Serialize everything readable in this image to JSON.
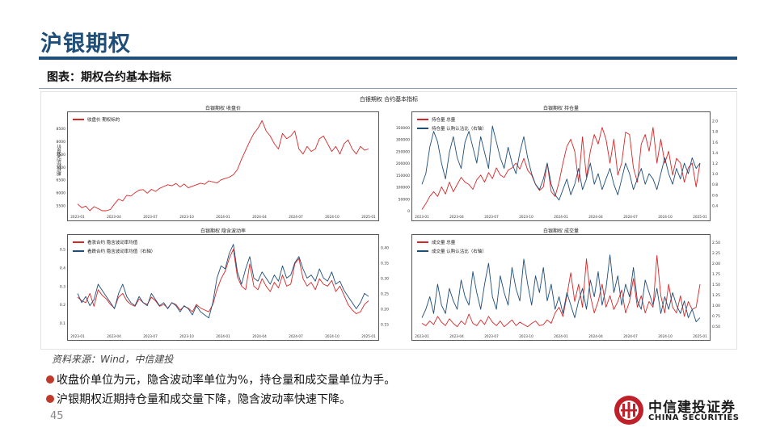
{
  "page": {
    "title": "沪银期权",
    "subtitle": "图表：期权合约基本指标",
    "source": "资料来源：Wind，中信建投",
    "bullets": [
      "收盘价单位为元，隐含波动率单位为%，持仓量和成交量单位为手。",
      "沪银期权近期持仓量和成交量下降，隐含波动率快速下降。"
    ],
    "page_number": "45",
    "logo_cn": "中信建投证券",
    "logo_en": "CHINA SECURITIES"
  },
  "colors": {
    "brand": "#1f4e79",
    "red": "#d62728",
    "blue": "#1f4e79",
    "bullet": "#c0392b"
  },
  "figure_title": "白银期权 合约基本指标",
  "x_ticks": [
    "2023-01",
    "2023-04",
    "2023-07",
    "2023-10",
    "2024-01",
    "2024-04",
    "2024-07",
    "2024-10",
    "2025-01"
  ],
  "chart_data": [
    {
      "type": "line",
      "title": "白银期权 收盘价",
      "ylabel": "期权标的收盘价",
      "legend": [
        "收盘价 期权标的"
      ],
      "ylim": [
        5300,
        9000
      ],
      "yticks": [
        "5500",
        "6000",
        "6500",
        "7000",
        "7500",
        "8000",
        "8500"
      ],
      "y2ticks": [],
      "x_range": [
        "2023-01",
        "2025-01"
      ],
      "series": [
        {
          "name": "收盘价 期权标的",
          "axis": "left",
          "color": "#d62728",
          "values": [
            5560,
            5420,
            5480,
            5250,
            5460,
            5380,
            5200,
            5150,
            5350,
            5560,
            5750,
            5680,
            5900,
            5870,
            6000,
            6100,
            6120,
            5980,
            6130,
            6050,
            6170,
            6240,
            6310,
            6270,
            6360,
            6220,
            6340,
            6190,
            6250,
            6310,
            6370,
            6330,
            6460,
            6420,
            6380,
            6500,
            6550,
            6600,
            6700,
            6900,
            7300,
            7650,
            8000,
            8300,
            8500,
            8800,
            8400,
            8200,
            7900,
            7700,
            8300,
            8100,
            8200,
            8400,
            7700,
            7500,
            7800,
            7600,
            7700,
            8100,
            8200,
            7900,
            7600,
            7800,
            7500,
            7900,
            8050,
            7700,
            7500,
            7800,
            7650,
            7700
          ]
        }
      ]
    },
    {
      "type": "line",
      "title": "白银期权 持仓量",
      "legend": [
        "持仓量 总量",
        "持仓量 认购认沽比（右轴）"
      ],
      "ylim": [
        0,
        400000
      ],
      "yticks": [
        "0",
        "50000",
        "100000",
        "150000",
        "200000",
        "250000",
        "300000",
        "350000"
      ],
      "y2ticks": [
        "0.4",
        "0.6",
        "0.8",
        "1.0",
        "1.2",
        "1.4",
        "1.6",
        "1.8",
        "2.0"
      ],
      "x_range": [
        "2023-01",
        "2025-01"
      ],
      "series": [
        {
          "name": "持仓量 总量",
          "axis": "left",
          "color": "#d62728",
          "values": [
            5000,
            30000,
            60000,
            80000,
            60000,
            100000,
            70000,
            120000,
            80000,
            110000,
            140000,
            120000,
            110000,
            90000,
            130000,
            150000,
            120000,
            160000,
            135000,
            180000,
            150000,
            140000,
            170000,
            180000,
            200000,
            175000,
            220000,
            170000,
            150000,
            110000,
            85000,
            100000,
            200000,
            80000,
            60000,
            120000,
            200000,
            270000,
            300000,
            250000,
            120000,
            310000,
            140000,
            250000,
            320000,
            280000,
            350000,
            300000,
            200000,
            300000,
            150000,
            200000,
            330000,
            320000,
            180000,
            120000,
            280000,
            320000,
            250000,
            350000,
            200000,
            300000,
            200000,
            250000,
            150000,
            220000,
            200000,
            120000,
            180000,
            200000,
            100000,
            200000
          ]
        },
        {
          "name": "持仓量 认购认沽比（右轴）",
          "axis": "right",
          "color": "#1f4e79",
          "y2lim": [
            0.3,
            2.1
          ],
          "values": [
            0.8,
            1.0,
            1.5,
            1.8,
            1.6,
            1.2,
            0.9,
            1.4,
            1.7,
            1.3,
            1.1,
            1.6,
            1.8,
            1.5,
            1.2,
            1.7,
            1.4,
            1.1,
            1.9,
            1.6,
            1.3,
            1.1,
            1.5,
            1.2,
            1.0,
            1.4,
            1.7,
            1.3,
            1.0,
            0.8,
            0.7,
            0.9,
            1.2,
            0.8,
            0.6,
            0.5,
            0.7,
            0.9,
            0.6,
            0.8,
            1.1,
            0.7,
            0.9,
            1.2,
            0.8,
            1.0,
            0.7,
            0.9,
            1.1,
            0.8,
            0.6,
            0.9,
            1.2,
            1.0,
            0.7,
            0.9,
            1.1,
            0.8,
            1.0,
            0.9,
            0.7,
            1.0,
            1.3,
            1.0,
            0.8,
            1.1,
            0.9,
            1.2,
            1.0,
            1.3,
            1.1,
            1.2
          ]
        }
      ]
    },
    {
      "type": "line",
      "title": "白银期权 隐含波动率",
      "legend": [
        "看涨合约 隐含波动率均值",
        "看跌合约 隐含波动率均值（右轴）"
      ],
      "ylim": [
        0.06,
        0.56
      ],
      "yticks": [
        "0.1",
        "0.2",
        "0.3",
        "0.4",
        "0.5"
      ],
      "y2ticks": [
        "0.15",
        "0.20",
        "0.25",
        "0.30",
        "0.35",
        "0.40"
      ],
      "x_range": [
        "2023-01",
        "2025-01"
      ],
      "series": [
        {
          "name": "看涨合约 隐含波动率均值",
          "axis": "left",
          "color": "#d62728",
          "values": [
            0.24,
            0.22,
            0.21,
            0.26,
            0.19,
            0.28,
            0.25,
            0.23,
            0.2,
            0.18,
            0.24,
            0.26,
            0.22,
            0.2,
            0.19,
            0.23,
            0.21,
            0.2,
            0.24,
            0.22,
            0.19,
            0.2,
            0.18,
            0.21,
            0.2,
            0.17,
            0.19,
            0.18,
            0.16,
            0.2,
            0.18,
            0.17,
            0.16,
            0.2,
            0.28,
            0.34,
            0.38,
            0.45,
            0.5,
            0.35,
            0.3,
            0.28,
            0.42,
            0.3,
            0.28,
            0.34,
            0.3,
            0.27,
            0.32,
            0.29,
            0.36,
            0.3,
            0.31,
            0.42,
            0.45,
            0.34,
            0.3,
            0.32,
            0.28,
            0.34,
            0.31,
            0.3,
            0.33,
            0.27,
            0.3,
            0.25,
            0.2,
            0.17,
            0.15,
            0.16,
            0.2,
            0.22
          ]
        },
        {
          "name": "看跌合约 隐含波动率均值（右轴）",
          "axis": "right",
          "color": "#1f4e79",
          "y2lim": [
            0.13,
            0.43
          ],
          "values": [
            0.25,
            0.22,
            0.24,
            0.21,
            0.23,
            0.28,
            0.26,
            0.24,
            0.22,
            0.2,
            0.25,
            0.28,
            0.24,
            0.22,
            0.21,
            0.24,
            0.22,
            0.21,
            0.25,
            0.23,
            0.21,
            0.22,
            0.2,
            0.22,
            0.21,
            0.19,
            0.21,
            0.2,
            0.18,
            0.21,
            0.19,
            0.18,
            0.17,
            0.22,
            0.3,
            0.34,
            0.33,
            0.38,
            0.41,
            0.32,
            0.28,
            0.33,
            0.37,
            0.3,
            0.29,
            0.32,
            0.3,
            0.28,
            0.31,
            0.29,
            0.34,
            0.3,
            0.31,
            0.35,
            0.37,
            0.33,
            0.3,
            0.31,
            0.29,
            0.33,
            0.3,
            0.29,
            0.32,
            0.28,
            0.29,
            0.26,
            0.24,
            0.22,
            0.2,
            0.22,
            0.25,
            0.24
          ]
        }
      ]
    },
    {
      "type": "line",
      "title": "白银期权 成交量",
      "legend": [
        "成交量 总量",
        "成交量 认购认沽比（右轴）"
      ],
      "ylim": [
        0,
        800000
      ],
      "yticks": [],
      "y2ticks": [
        "0.50",
        "0.75",
        "1.00",
        "1.25",
        "1.50",
        "1.75",
        "2.00",
        "2.25",
        "2.50"
      ],
      "x_range": [
        "2023-01",
        "2025-01"
      ],
      "series": [
        {
          "name": "成交量 总量",
          "axis": "left",
          "color": "#d62728",
          "values": [
            60000,
            40000,
            80000,
            50000,
            120000,
            70000,
            40000,
            100000,
            60000,
            30000,
            80000,
            50000,
            140000,
            60000,
            40000,
            90000,
            50000,
            120000,
            70000,
            40000,
            80000,
            30000,
            60000,
            90000,
            40000,
            70000,
            50000,
            30000,
            60000,
            80000,
            40000,
            50000,
            90000,
            60000,
            150000,
            200000,
            120000,
            300000,
            500000,
            250000,
            400000,
            200000,
            620000,
            300000,
            150000,
            250000,
            400000,
            200000,
            300000,
            180000,
            250000,
            350000,
            150000,
            250000,
            450000,
            200000,
            300000,
            150000,
            250000,
            200000,
            650000,
            300000,
            150000,
            400000,
            200000,
            150000,
            300000,
            120000,
            250000,
            180000,
            200000,
            400000
          ]
        },
        {
          "name": "成交量 认购认沽比（右轴）",
          "axis": "right",
          "color": "#1f4e79",
          "y2lim": [
            0.4,
            2.6
          ],
          "values": [
            0.7,
            0.9,
            1.2,
            0.8,
            1.5,
            1.0,
            0.8,
            1.4,
            1.1,
            0.9,
            1.6,
            1.2,
            1.0,
            1.8,
            1.3,
            0.9,
            1.5,
            2.0,
            1.2,
            0.9,
            1.7,
            1.3,
            1.0,
            1.9,
            1.4,
            1.1,
            2.1,
            1.5,
            1.0,
            1.7,
            1.3,
            1.9,
            1.1,
            1.5,
            0.9,
            1.2,
            0.8,
            1.3,
            1.0,
            0.7,
            1.1,
            1.4,
            0.9,
            1.6,
            1.2,
            1.8,
            1.0,
            1.4,
            2.2,
            1.3,
            1.7,
            1.0,
            1.5,
            1.2,
            1.9,
            1.1,
            0.9,
            1.6,
            1.3,
            1.0,
            1.4,
            0.8,
            1.2,
            0.9,
            1.3,
            1.0,
            0.8,
            1.1,
            0.7,
            0.9,
            0.6,
            0.7
          ]
        }
      ]
    }
  ]
}
